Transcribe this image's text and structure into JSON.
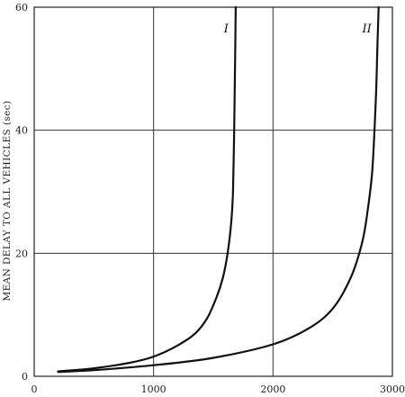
{
  "chart_data": {
    "type": "line",
    "title": "",
    "xlabel": "",
    "ylabel": "MEAN DELAY TO ALL VEHICLES (sec)",
    "xlim": [
      0,
      3000
    ],
    "ylim": [
      0,
      60
    ],
    "xticks": [
      0,
      1000,
      2000,
      3000
    ],
    "yticks": [
      0,
      20,
      40,
      60
    ],
    "xtick_labels": [
      "0",
      "1000",
      "2000",
      "3000"
    ],
    "ytick_labels": [
      "0",
      "20",
      "40",
      "60"
    ],
    "grid": true,
    "legend": "none",
    "series": [
      {
        "name": "I",
        "color": "#111111",
        "x": [
          200,
          500,
          800,
          1000,
          1200,
          1350,
          1450,
          1530,
          1580,
          1620,
          1650,
          1665,
          1675,
          1682,
          1688
        ],
        "y": [
          0.8,
          1.3,
          2.2,
          3.2,
          5.0,
          7.0,
          9.5,
          13.0,
          16.0,
          20.0,
          25.0,
          30.0,
          40.0,
          50.0,
          60.0
        ]
      },
      {
        "name": "II",
        "color": "#111111",
        "x": [
          200,
          500,
          1000,
          1500,
          2000,
          2300,
          2500,
          2650,
          2750,
          2800,
          2830,
          2850,
          2865,
          2875,
          2885
        ],
        "y": [
          0.7,
          1.0,
          1.8,
          3.0,
          5.2,
          7.8,
          11.0,
          16.0,
          22.0,
          28.0,
          33.0,
          40.0,
          47.0,
          54.0,
          60.0
        ]
      }
    ]
  }
}
